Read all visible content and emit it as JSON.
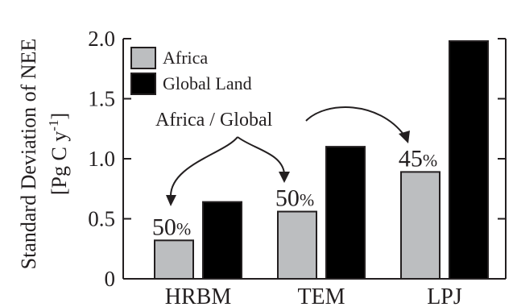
{
  "chart_data": {
    "type": "bar",
    "categories": [
      "HRBM",
      "TEM",
      "LPJ"
    ],
    "series": [
      {
        "name": "Africa",
        "values": [
          0.32,
          0.56,
          0.89
        ],
        "color": "#bcbec0"
      },
      {
        "name": "Global Land",
        "values": [
          0.64,
          1.1,
          1.98
        ],
        "color": "#000000"
      }
    ],
    "ylabel_line1": "Standard Deviation of NEE",
    "ylabel_line2_prefix": "[Pg C y",
    "ylabel_line2_exp": "-1",
    "ylabel_line2_suffix": "]",
    "ylim": [
      0,
      2.0
    ],
    "yticks": [
      "0",
      "0.5",
      "1.0",
      "1.5",
      "2.0"
    ],
    "ytick_values": [
      0,
      0.5,
      1.0,
      1.5,
      2.0
    ],
    "legend_position": "top-left",
    "grid": false,
    "ratio_labels": [
      {
        "number": "50",
        "unit": "%"
      },
      {
        "number": "50",
        "unit": "%"
      },
      {
        "number": "45",
        "unit": "%"
      }
    ],
    "annotation": "Africa / Global"
  }
}
